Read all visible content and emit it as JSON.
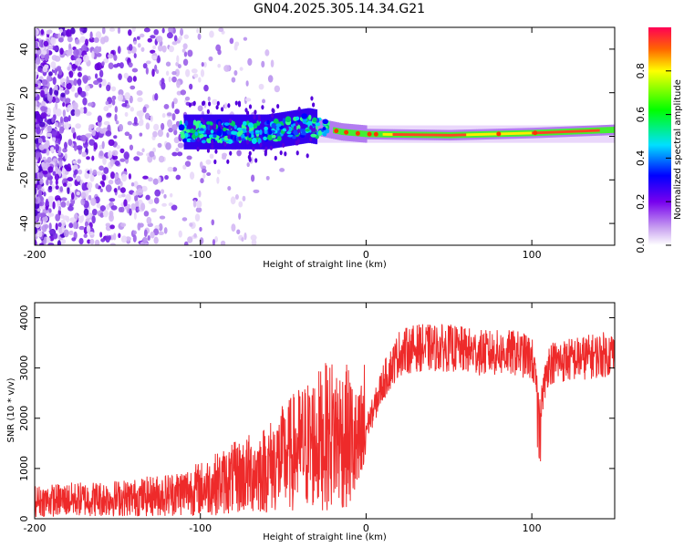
{
  "title": "GN04.2025.305.14.34.G21",
  "spectrogram": {
    "type": "heatmap",
    "xlabel": "Height of straight line (km)",
    "ylabel": "Frequency (Hz)",
    "xlim": [
      -200,
      150
    ],
    "ylim": [
      -50,
      50
    ],
    "xticks": [
      "-200",
      "-100",
      "0",
      "100"
    ],
    "yticks": [
      "40",
      "20",
      "0",
      "-20",
      "-40"
    ],
    "colorbar": {
      "label": "Normalized spectral amplitude",
      "ticks": [
        "0.0",
        "0.2",
        "0.4",
        "0.6",
        "0.8"
      ],
      "range": [
        0,
        1
      ]
    },
    "signal_track": [
      {
        "x": -110,
        "y": 2
      },
      {
        "x": -60,
        "y": 2
      },
      {
        "x": -35,
        "y": 5
      },
      {
        "x": -15,
        "y": 2
      },
      {
        "x": 0,
        "y": 1
      },
      {
        "x": 50,
        "y": 0.5
      },
      {
        "x": 100,
        "y": 1.5
      },
      {
        "x": 150,
        "y": 3
      }
    ]
  },
  "chart_data": {
    "type": "line",
    "title": "",
    "xlabel": "Height of straight line (km)",
    "ylabel": "SNR (10 * v/v)",
    "xlim": [
      -200,
      150
    ],
    "ylim": [
      0,
      4300
    ],
    "xticks": [
      "-200",
      "-100",
      "0",
      "100"
    ],
    "yticks": [
      "0",
      "1000",
      "2000",
      "3000",
      "4000"
    ],
    "series": [
      {
        "name": "SNR",
        "color": "#ee2a2a",
        "x": [
          -200,
          -180,
          -160,
          -140,
          -120,
          -100,
          -80,
          -60,
          -40,
          -20,
          -10,
          -5,
          0,
          5,
          10,
          20,
          30,
          50,
          70,
          90,
          100,
          105,
          110,
          130,
          150
        ],
        "values": [
          350,
          380,
          400,
          420,
          480,
          600,
          800,
          1000,
          1400,
          1700,
          1600,
          1300,
          1800,
          2200,
          2700,
          3300,
          3400,
          3400,
          3300,
          3300,
          3200,
          2200,
          3100,
          3200,
          3300
        ]
      }
    ]
  }
}
